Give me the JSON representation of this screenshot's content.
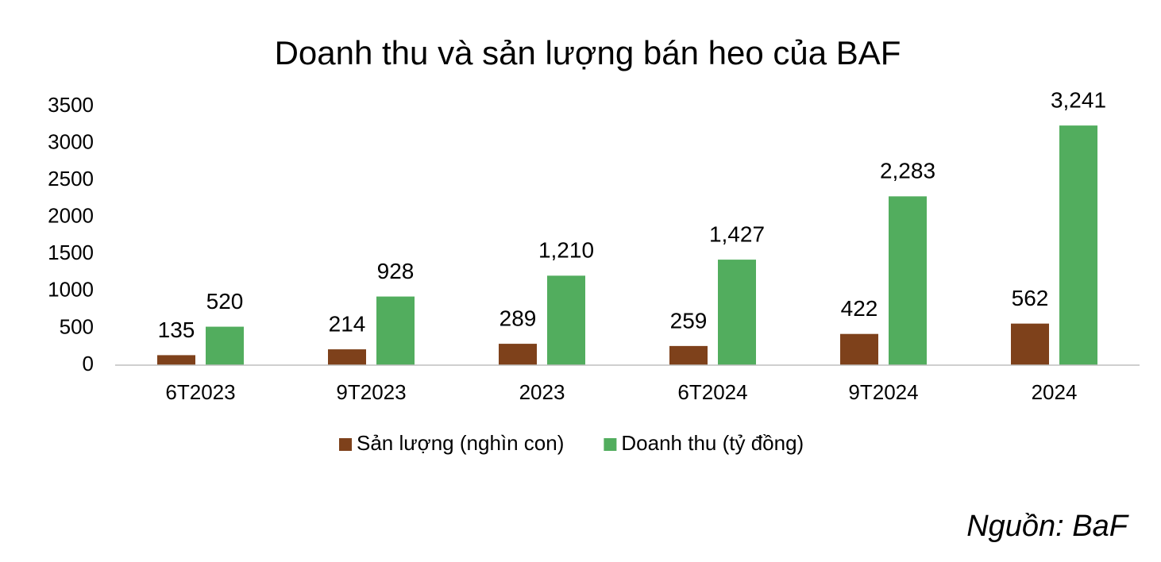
{
  "chart_data": {
    "type": "bar",
    "title": "Doanh thu và sản lượng bán heo của BAF",
    "categories": [
      "6T2023",
      "9T2023",
      "2023",
      "6T2024",
      "9T2024",
      "2024"
    ],
    "series": [
      {
        "name": "Sản lượng (nghìn con)",
        "color": "#7e411b",
        "values": [
          135,
          214,
          289,
          259,
          422,
          562
        ]
      },
      {
        "name": "Doanh thu (tỷ đồng)",
        "color": "#52ad5e",
        "values": [
          520,
          928,
          1210,
          1427,
          2283,
          3241
        ],
        "value_labels": [
          "520",
          "928",
          "1,210",
          "1,427",
          "2,283",
          "3,241"
        ]
      }
    ],
    "ylim": [
      0,
      3500
    ],
    "yticks": [
      0,
      500,
      1000,
      1500,
      2000,
      2500,
      3000,
      3500
    ],
    "grid": false,
    "legend": "bottom",
    "source": "Nguồn: BaF"
  }
}
